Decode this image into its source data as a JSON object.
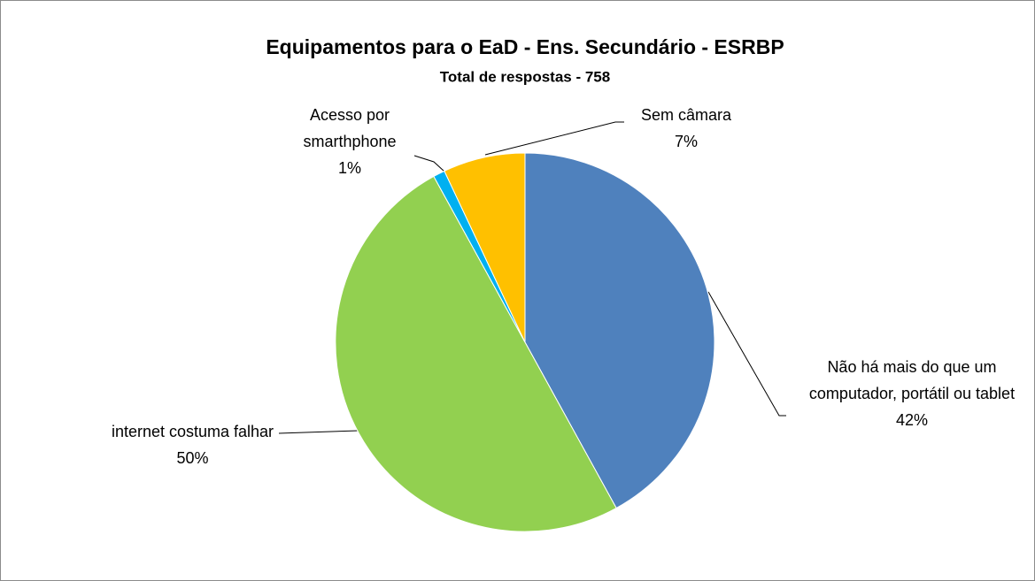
{
  "chart_data": {
    "type": "pie",
    "title": "Equipamentos para o EaD  - Ens. Secundário - ESRBP",
    "subtitle": "Total de respostas - 758",
    "categories": [
      "Não há mais do que um computador, portátil ou tablet",
      "internet costuma falhar",
      "Acesso por smarthphone",
      "Sem câmara"
    ],
    "values": [
      42,
      50,
      1,
      7
    ],
    "value_labels": [
      "42%",
      "50%",
      "1%",
      "7%"
    ],
    "colors": [
      "#4f81bd",
      "#92d050",
      "#00b0f0",
      "#ffc000"
    ]
  }
}
